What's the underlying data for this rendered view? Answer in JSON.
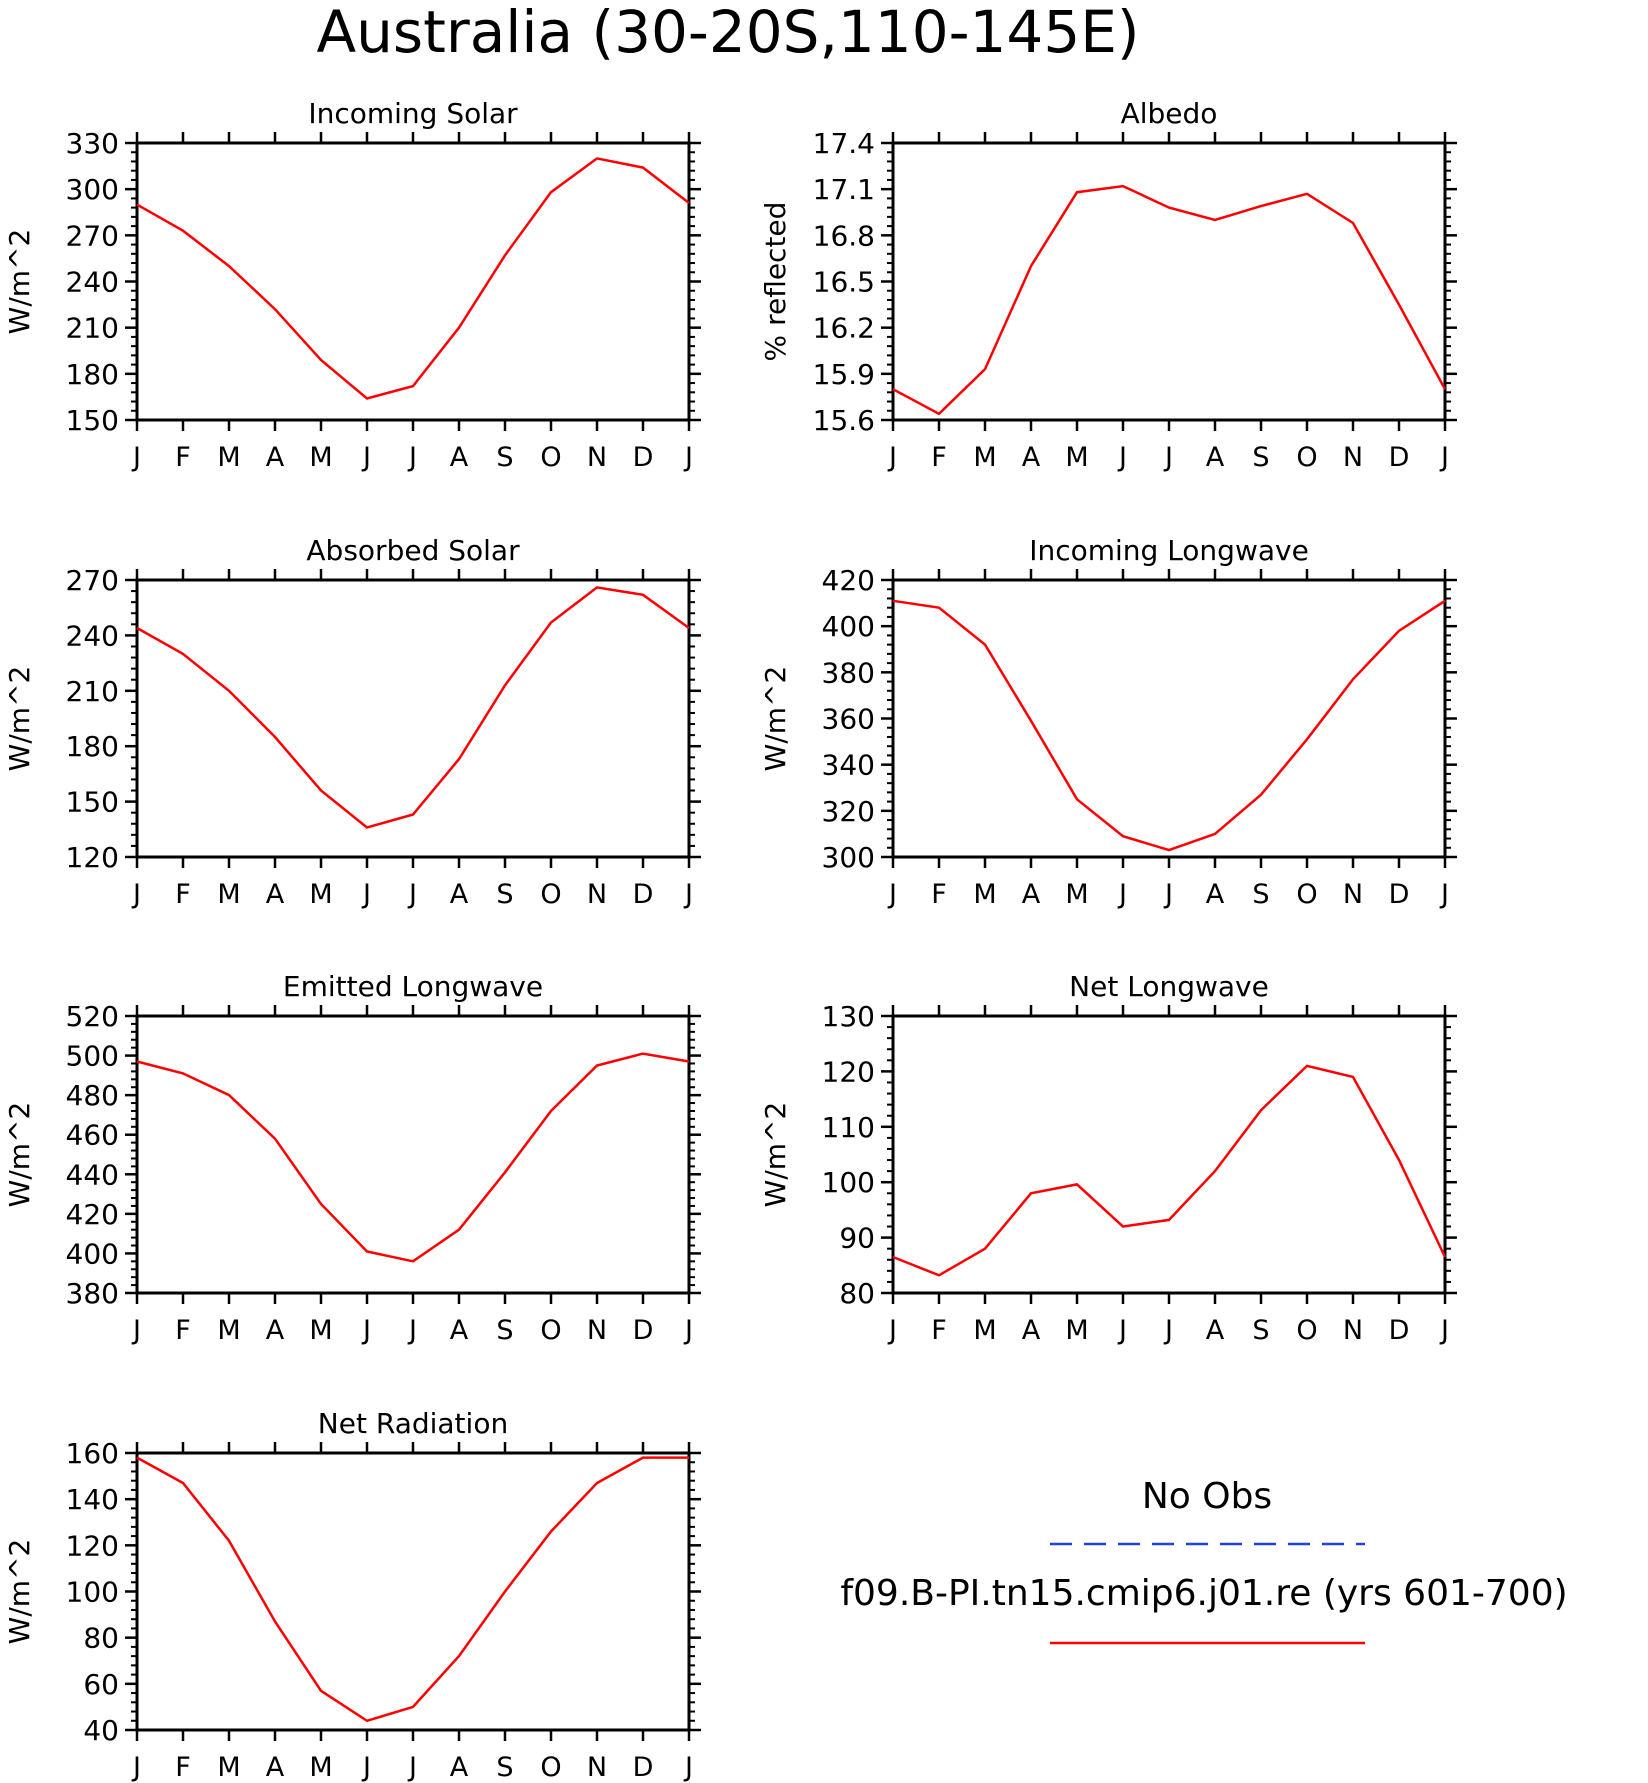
{
  "title": "Australia (30-20S,110-145E)",
  "legend": {
    "entries": [
      {
        "name": "No Obs",
        "color": "#2040e0",
        "style": "dashed"
      },
      {
        "name": "f09.B-PI.tn15.cmip6.j01.re (yrs 601-700)",
        "color": "#ff0000",
        "style": "solid"
      }
    ]
  },
  "chart_data": [
    {
      "type": "line",
      "title": "Incoming Solar",
      "ylabel": "W/m^2",
      "ylim": [
        150,
        330
      ],
      "yticks": [
        150,
        180,
        210,
        240,
        270,
        300,
        330
      ],
      "categories": [
        "J",
        "F",
        "M",
        "A",
        "M",
        "J",
        "J",
        "A",
        "S",
        "O",
        "N",
        "D",
        "J"
      ],
      "series": [
        {
          "values": [
            290,
            273,
            250,
            222,
            189,
            164,
            172,
            210,
            257,
            298,
            320,
            314,
            291
          ],
          "color": "#ff0000"
        }
      ]
    },
    {
      "type": "line",
      "title": "Albedo",
      "ylabel": "% reflected",
      "ylim": [
        15.6,
        17.4
      ],
      "yticks": [
        "15.6",
        "15.9",
        "16.2",
        "16.5",
        "16.8",
        "17.1",
        "17.4"
      ],
      "categories": [
        "J",
        "F",
        "M",
        "A",
        "M",
        "J",
        "J",
        "A",
        "S",
        "O",
        "N",
        "D",
        "J"
      ],
      "series": [
        {
          "values": [
            15.8,
            15.64,
            15.93,
            16.6,
            17.08,
            17.12,
            16.98,
            16.9,
            16.99,
            17.07,
            16.88,
            16.35,
            15.8
          ],
          "color": "#ff0000"
        }
      ]
    },
    {
      "type": "line",
      "title": "Absorbed Solar",
      "ylabel": "W/m^2",
      "ylim": [
        120,
        270
      ],
      "yticks": [
        120,
        150,
        180,
        210,
        240,
        270
      ],
      "categories": [
        "J",
        "F",
        "M",
        "A",
        "M",
        "J",
        "J",
        "A",
        "S",
        "O",
        "N",
        "D",
        "J"
      ],
      "series": [
        {
          "values": [
            244,
            230,
            210,
            185,
            156,
            136,
            143,
            173,
            213,
            247,
            266,
            262,
            244
          ],
          "color": "#ff0000"
        }
      ]
    },
    {
      "type": "line",
      "title": "Incoming Longwave",
      "ylabel": "W/m^2",
      "ylim": [
        300,
        420
      ],
      "yticks": [
        300,
        320,
        340,
        360,
        380,
        400,
        420
      ],
      "categories": [
        "J",
        "F",
        "M",
        "A",
        "M",
        "J",
        "J",
        "A",
        "S",
        "O",
        "N",
        "D",
        "J"
      ],
      "series": [
        {
          "values": [
            411,
            408,
            392,
            359,
            325,
            309,
            303,
            310,
            327,
            351,
            377,
            398,
            411
          ],
          "color": "#ff0000"
        }
      ]
    },
    {
      "type": "line",
      "title": "Emitted Longwave",
      "ylabel": "W/m^2",
      "ylim": [
        380,
        520
      ],
      "yticks": [
        380,
        400,
        420,
        440,
        460,
        480,
        500,
        520
      ],
      "categories": [
        "J",
        "F",
        "M",
        "A",
        "M",
        "J",
        "J",
        "A",
        "S",
        "O",
        "N",
        "D",
        "J"
      ],
      "series": [
        {
          "values": [
            497,
            491,
            480,
            458,
            425,
            401,
            396,
            412,
            441,
            472,
            495,
            501,
            497
          ],
          "color": "#ff0000"
        }
      ]
    },
    {
      "type": "line",
      "title": "Net Longwave",
      "ylabel": "W/m^2",
      "ylim": [
        80,
        130
      ],
      "yticks": [
        80,
        90,
        100,
        110,
        120,
        130
      ],
      "categories": [
        "J",
        "F",
        "M",
        "A",
        "M",
        "J",
        "J",
        "A",
        "S",
        "O",
        "N",
        "D",
        "J"
      ],
      "series": [
        {
          "values": [
            86.5,
            83.2,
            88,
            98,
            99.6,
            92,
            93.2,
            102,
            113,
            121,
            119,
            104,
            86.5
          ],
          "color": "#ff0000"
        }
      ]
    },
    {
      "type": "line",
      "title": "Net Radiation",
      "ylabel": "W/m^2",
      "ylim": [
        40,
        160
      ],
      "yticks": [
        40,
        60,
        80,
        100,
        120,
        140,
        160
      ],
      "categories": [
        "J",
        "F",
        "M",
        "A",
        "M",
        "J",
        "J",
        "A",
        "S",
        "O",
        "N",
        "D",
        "J"
      ],
      "series": [
        {
          "values": [
            158,
            147,
            122,
            87,
            57,
            44,
            50,
            72,
            100,
            126,
            147,
            158,
            158
          ],
          "color": "#ff0000"
        }
      ]
    }
  ]
}
